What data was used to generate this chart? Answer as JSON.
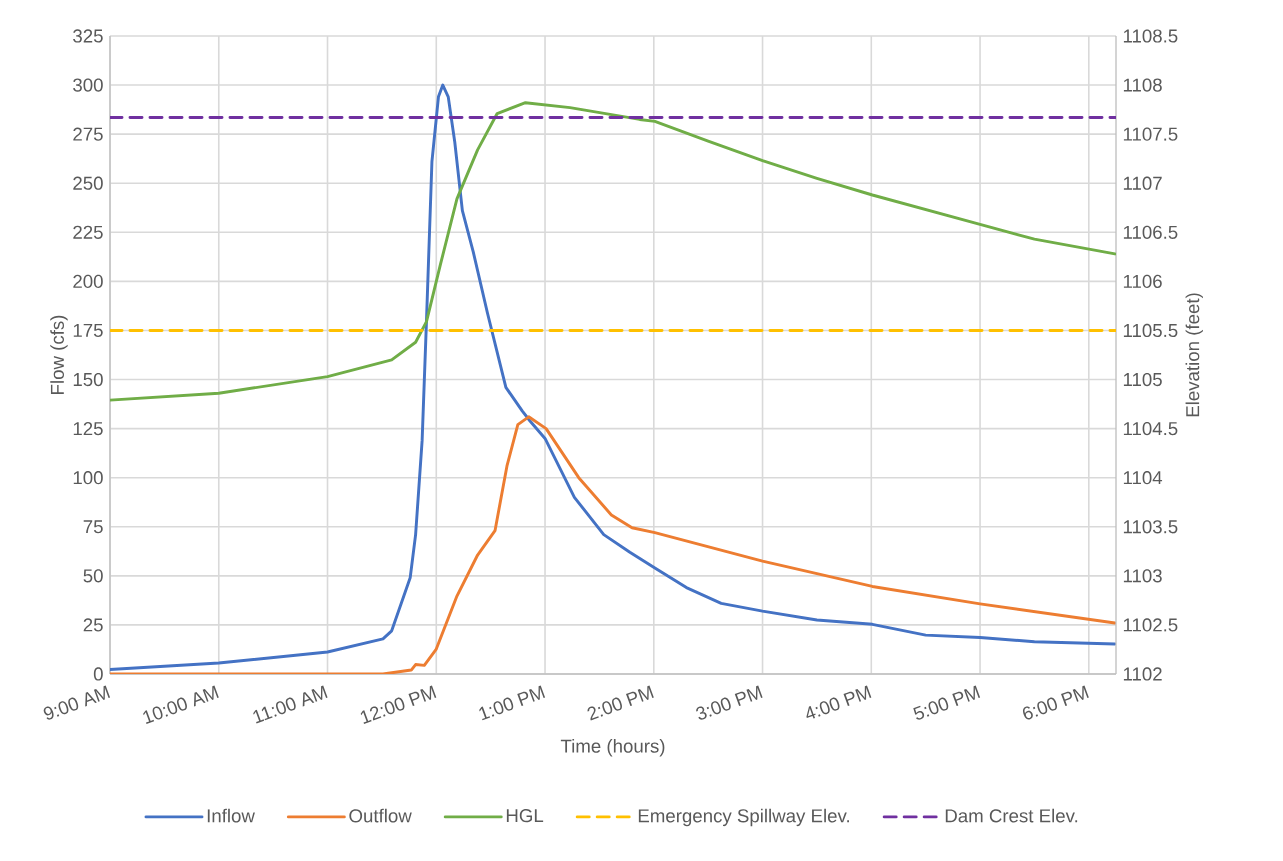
{
  "chart_data": {
    "type": "line",
    "xlabel": "Time (hours)",
    "ylabel": "Flow (cfs)",
    "y2label": "Elevation (feet)",
    "xlim": [
      9,
      18.25
    ],
    "xticks": [
      {
        "value": 9,
        "label": "9:00 AM"
      },
      {
        "value": 10,
        "label": "10:00 AM"
      },
      {
        "value": 11,
        "label": "11:00 AM"
      },
      {
        "value": 12,
        "label": "12:00 PM"
      },
      {
        "value": 13,
        "label": "1:00 PM"
      },
      {
        "value": 14,
        "label": "2:00 PM"
      },
      {
        "value": 15,
        "label": "3:00 PM"
      },
      {
        "value": 16,
        "label": "4:00 PM"
      },
      {
        "value": 17,
        "label": "5:00 PM"
      },
      {
        "value": 18,
        "label": "6:00 PM"
      }
    ],
    "ylim": [
      0,
      325
    ],
    "yticks": [
      0,
      25,
      50,
      75,
      100,
      125,
      150,
      175,
      200,
      225,
      250,
      275,
      300,
      325
    ],
    "y2lim": [
      1102,
      1108.5
    ],
    "y2ticks": [
      1102,
      1102.5,
      1103,
      1103.5,
      1104,
      1104.5,
      1105,
      1105.5,
      1106,
      1106.5,
      1107,
      1107.5,
      1108,
      1108.5
    ],
    "grid": true,
    "legend": "bottom",
    "marker": "none",
    "series": [
      {
        "name": "Inflow",
        "color": "#4472c4",
        "line_style": "solid",
        "x": [
          9,
          10,
          11,
          11.51,
          11.59,
          11.76,
          11.81,
          11.87,
          11.91,
          11.96,
          12.02,
          12.06,
          12.11,
          12.17,
          12.24,
          12.34,
          12.47,
          12.64,
          12.79,
          12.86,
          13.0,
          13.27,
          13.54,
          13.78,
          14.01,
          14.3,
          14.62,
          15.0,
          15.5,
          16.01,
          16.5,
          17.0,
          17.5,
          18.24
        ],
        "values": [
          2.3,
          5.6,
          11.2,
          17.9,
          22,
          49,
          71,
          119,
          180,
          261,
          294,
          300,
          294,
          271,
          236,
          215,
          184,
          146,
          134,
          129,
          120,
          90,
          71,
          62,
          54,
          44,
          36,
          32,
          27.5,
          25.3,
          19.8,
          18.6,
          16.4,
          15.3
        ]
      },
      {
        "name": "Outflow",
        "color": "#ed7d31",
        "line_style": "solid",
        "x": [
          9,
          11.51,
          11.77,
          11.81,
          11.89,
          12.0,
          12.19,
          12.38,
          12.54,
          12.65,
          12.75,
          12.85,
          13.01,
          13.31,
          13.61,
          13.8,
          14.01,
          15.0,
          16.01,
          17.0,
          18.24
        ],
        "values": [
          0,
          0,
          2,
          4.8,
          4.4,
          12.7,
          39.7,
          60.6,
          73,
          106,
          127,
          131,
          125,
          100,
          81,
          74.5,
          72,
          57.5,
          44.6,
          35.7,
          26
        ]
      },
      {
        "name": "HGL",
        "color": "#70ad47",
        "line_style": "solid",
        "axis": "y2",
        "x": [
          9,
          10,
          11,
          11.59,
          11.81,
          11.91,
          12.04,
          12.19,
          12.38,
          12.56,
          12.82,
          13.23,
          13.87,
          14.01,
          14.5,
          15.0,
          15.5,
          16.01,
          17.0,
          17.5,
          18.24
        ],
        "values": [
          1104.79,
          1104.86,
          1105.03,
          1105.2,
          1105.38,
          1105.59,
          1106.18,
          1106.84,
          1107.34,
          1107.71,
          1107.82,
          1107.77,
          1107.65,
          1107.63,
          1107.43,
          1107.23,
          1107.05,
          1106.88,
          1106.58,
          1106.43,
          1106.28
        ]
      },
      {
        "name": "Emergency Spillway Elev.",
        "color": "#ffc000",
        "line_style": "dashed",
        "axis": "y2",
        "x": [
          9,
          18.25
        ],
        "values": [
          1105.5,
          1105.5
        ]
      },
      {
        "name": "Dam Crest Elev.",
        "color": "#7030a0",
        "line_style": "dashed",
        "axis": "y2",
        "x": [
          9,
          18.25
        ],
        "values": [
          1107.67,
          1107.67
        ]
      }
    ]
  }
}
